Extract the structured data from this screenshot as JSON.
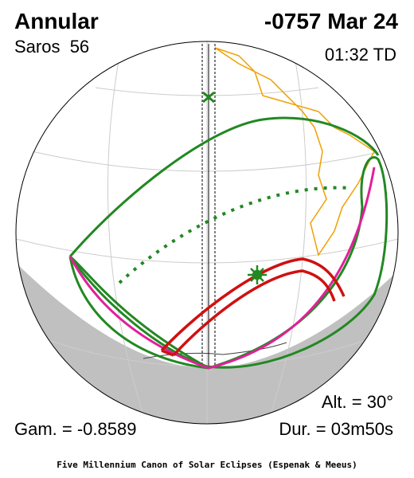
{
  "header": {
    "title": "Annular",
    "saros": "Saros  56",
    "date": "-0757 Mar 24",
    "time": "01:32 TD"
  },
  "stats": {
    "altitude": "Alt. = 30°",
    "gamma": "Gam. = -0.8589",
    "duration": "Dur. = 03m50s"
  },
  "footer": "Five Millennium Canon of Solar Eclipses (Espenak & Meeus)"
}
